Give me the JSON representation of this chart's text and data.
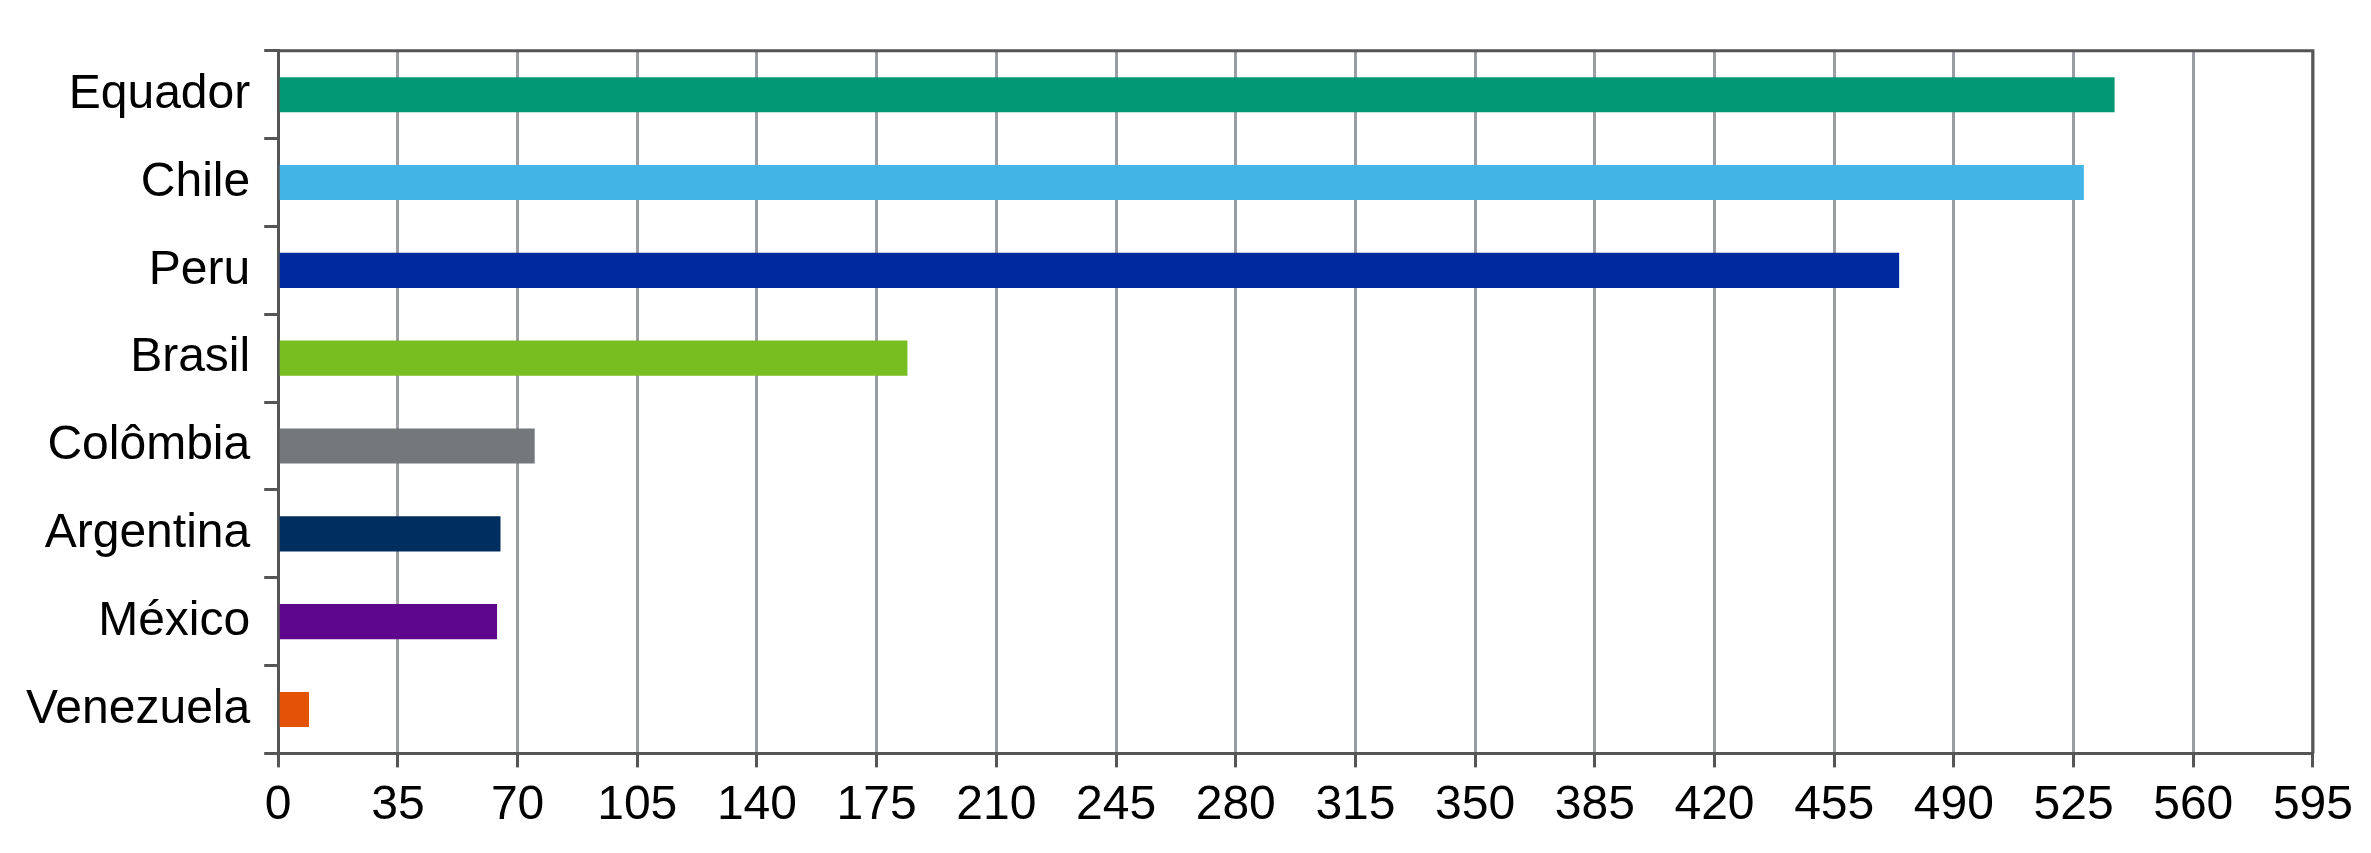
{
  "chart_data": {
    "type": "bar",
    "orientation": "horizontal",
    "categories": [
      "Equador",
      "Chile",
      "Peru",
      "Brasil",
      "Colômbia",
      "Argentina",
      "México",
      "Venezuela"
    ],
    "values": [
      537,
      528,
      474,
      184,
      75,
      65,
      64,
      9
    ],
    "colors": [
      "#029874",
      "#42b4e6",
      "#0029a0",
      "#78be20",
      "#75787b",
      "#002f5f",
      "#5e068c",
      "#e35205"
    ],
    "xlim": [
      0,
      595
    ],
    "xticks": [
      0,
      35,
      70,
      105,
      140,
      175,
      210,
      245,
      280,
      315,
      350,
      385,
      420,
      455,
      490,
      525,
      560,
      595
    ],
    "grid": "x",
    "legend": false
  }
}
